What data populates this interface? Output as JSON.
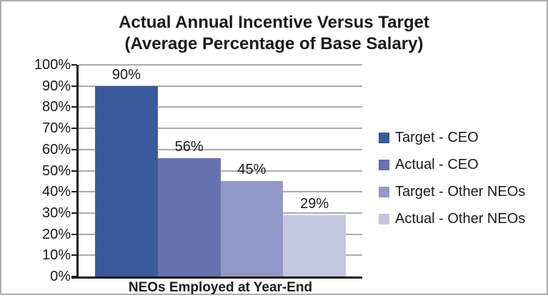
{
  "title": {
    "line1": "Actual Annual Incentive Versus Target",
    "line2": "(Average Percentage of Base Salary)"
  },
  "chart_data": {
    "type": "bar",
    "title": "Actual Annual Incentive Versus Target",
    "subtitle": "(Average Percentage of Base Salary)",
    "xlabel": "NEOs Employed at Year-End",
    "ylabel": "",
    "categories": [
      "NEOs Employed at Year-End"
    ],
    "series": [
      {
        "name": "Target - CEO",
        "value": 90,
        "data_label": "90%",
        "color": "#3A5A9C"
      },
      {
        "name": "Actual - CEO",
        "value": 56,
        "data_label": "56%",
        "color": "#6672AD"
      },
      {
        "name": "Target - Other NEOs",
        "value": 45,
        "data_label": "45%",
        "color": "#9399C6"
      },
      {
        "name": "Actual - Other NEOs",
        "value": 29,
        "data_label": "29%",
        "color": "#C4C7DE"
      }
    ],
    "ylim": [
      0,
      100
    ],
    "ytick_step": 10,
    "ytick_labels": [
      "0%",
      "10%",
      "20%",
      "30%",
      "40%",
      "50%",
      "60%",
      "70%",
      "80%",
      "90%",
      "100%"
    ],
    "grid": true,
    "legend_position": "right"
  },
  "colors": {
    "gridline": "#ABABAB",
    "axis": "#1A1A1A",
    "text": "#1A1A1A",
    "frame_border": "#ACACAC",
    "background": "#FFFFFF"
  }
}
